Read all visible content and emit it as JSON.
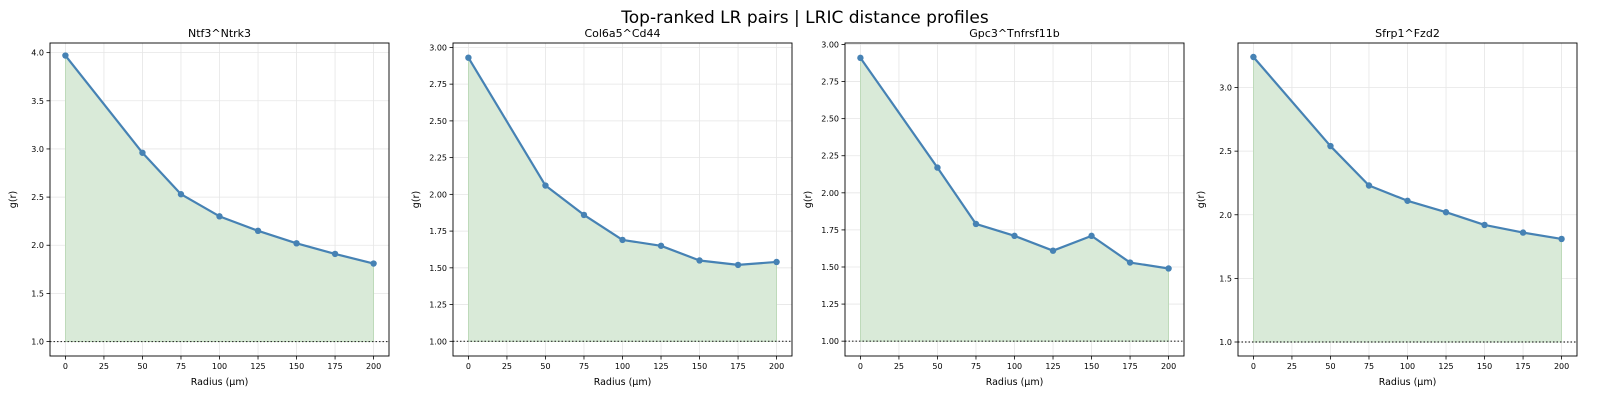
{
  "figure": {
    "title": "Top-ranked LR pairs | LRIC distance profiles"
  },
  "colors": {
    "line": "#4682b4",
    "fill": "#d9ead8",
    "fill_edge": "#b7d7b3",
    "reference": "#333333",
    "grid": "#e6e6e6"
  },
  "chart_data": [
    {
      "type": "line",
      "title": "Ntf3^Ntrk3",
      "xlabel": "Radius (µm)",
      "ylabel": "g(r)",
      "x": [
        0,
        50,
        75,
        100,
        125,
        150,
        175,
        200
      ],
      "y": [
        3.97,
        2.96,
        2.53,
        2.3,
        2.15,
        2.02,
        1.91,
        1.81
      ],
      "xlim": [
        -10,
        210
      ],
      "ylim": [
        0.85,
        4.1
      ],
      "xticks": [
        0,
        25,
        50,
        75,
        100,
        125,
        150,
        175,
        200
      ],
      "yticks": [
        "1.0",
        "1.5",
        "2.0",
        "2.5",
        "3.0",
        "3.5",
        "4.0"
      ],
      "reference_line": 1.0,
      "grid": true,
      "fill_below": true
    },
    {
      "type": "line",
      "title": "Col6a5^Cd44",
      "xlabel": "Radius (µm)",
      "ylabel": "g(r)",
      "x": [
        0,
        50,
        75,
        100,
        125,
        150,
        175,
        200
      ],
      "y": [
        2.93,
        2.06,
        1.86,
        1.69,
        1.65,
        1.55,
        1.52,
        1.54
      ],
      "xlim": [
        -10,
        210
      ],
      "ylim": [
        0.9,
        3.03
      ],
      "xticks": [
        0,
        25,
        50,
        75,
        100,
        125,
        150,
        175,
        200
      ],
      "yticks": [
        "1.00",
        "1.25",
        "1.50",
        "1.75",
        "2.00",
        "2.25",
        "2.50",
        "2.75",
        "3.00"
      ],
      "reference_line": 1.0,
      "grid": true,
      "fill_below": true
    },
    {
      "type": "line",
      "title": "Gpc3^Tnfrsf11b",
      "xlabel": "Radius (µm)",
      "ylabel": "g(r)",
      "x": [
        0,
        50,
        75,
        100,
        125,
        150,
        175,
        200
      ],
      "y": [
        2.91,
        2.17,
        1.79,
        1.71,
        1.61,
        1.71,
        1.53,
        1.49
      ],
      "xlim": [
        -10,
        210
      ],
      "ylim": [
        0.9,
        3.01
      ],
      "xticks": [
        0,
        25,
        50,
        75,
        100,
        125,
        150,
        175,
        200
      ],
      "yticks": [
        "1.00",
        "1.25",
        "1.50",
        "1.75",
        "2.00",
        "2.25",
        "2.50",
        "2.75",
        "3.00"
      ],
      "reference_line": 1.0,
      "grid": true,
      "fill_below": true
    },
    {
      "type": "line",
      "title": "Sfrp1^Fzd2",
      "xlabel": "Radius (µm)",
      "ylabel": "g(r)",
      "x": [
        0,
        50,
        75,
        100,
        125,
        150,
        175,
        200
      ],
      "y": [
        3.24,
        2.54,
        2.23,
        2.11,
        2.02,
        1.92,
        1.86,
        1.81
      ],
      "xlim": [
        -10,
        210
      ],
      "ylim": [
        0.89,
        3.35
      ],
      "xticks": [
        0,
        25,
        50,
        75,
        100,
        125,
        150,
        175,
        200
      ],
      "yticks": [
        "1.0",
        "1.5",
        "2.0",
        "2.5",
        "3.0"
      ],
      "reference_line": 1.0,
      "grid": true,
      "fill_below": true
    }
  ]
}
